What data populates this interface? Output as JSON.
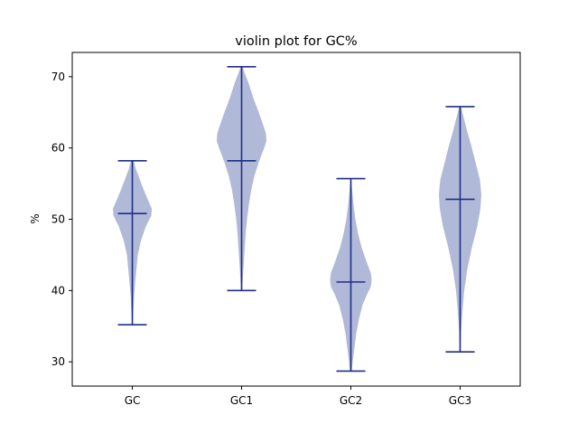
{
  "chart_data": {
    "type": "violin",
    "title": "violin plot for GC%",
    "xlabel": "",
    "ylabel": "%",
    "categories": [
      "GC",
      "GC1",
      "GC2",
      "GC3"
    ],
    "ylim": [
      26.6,
      73.4
    ],
    "yticks": [
      30,
      40,
      50,
      60,
      70
    ],
    "grid": false,
    "colors": {
      "body": "#b0b9d8",
      "lines": "#1f2f86",
      "axes": "#000000"
    },
    "violins": [
      {
        "category": "GC",
        "min": 35.2,
        "max": 58.2,
        "mean": 50.8,
        "profile": [
          [
            35.2,
            0.5
          ],
          [
            37,
            1
          ],
          [
            39,
            1.8
          ],
          [
            41,
            3
          ],
          [
            43,
            4.5
          ],
          [
            45,
            6
          ],
          [
            47,
            9.5
          ],
          [
            49,
            15
          ],
          [
            50.5,
            21
          ],
          [
            51.5,
            21.5
          ],
          [
            52.5,
            18
          ],
          [
            54,
            13
          ],
          [
            55.5,
            8.5
          ],
          [
            57,
            4
          ],
          [
            58.2,
            1.5
          ]
        ]
      },
      {
        "category": "GC1",
        "min": 40.0,
        "max": 71.4,
        "mean": 58.2,
        "profile": [
          [
            40,
            0.5
          ],
          [
            42,
            1.5
          ],
          [
            44,
            2.5
          ],
          [
            46,
            3.5
          ],
          [
            48,
            4.5
          ],
          [
            50,
            6
          ],
          [
            52,
            8
          ],
          [
            54,
            10.5
          ],
          [
            56,
            14
          ],
          [
            58,
            19
          ],
          [
            60,
            25
          ],
          [
            61,
            27.5
          ],
          [
            62,
            27
          ],
          [
            63,
            24.5
          ],
          [
            65,
            19
          ],
          [
            67,
            13
          ],
          [
            69,
            8
          ],
          [
            70.5,
            3.5
          ],
          [
            71.4,
            1
          ]
        ]
      },
      {
        "category": "GC2",
        "min": 28.7,
        "max": 55.7,
        "mean": 41.2,
        "profile": [
          [
            28.7,
            1
          ],
          [
            30,
            2
          ],
          [
            32,
            4
          ],
          [
            34,
            6
          ],
          [
            36,
            9
          ],
          [
            38,
            13
          ],
          [
            39.5,
            18
          ],
          [
            40.5,
            22
          ],
          [
            41.5,
            23
          ],
          [
            42.5,
            22
          ],
          [
            44,
            17.5
          ],
          [
            46,
            12
          ],
          [
            48,
            8
          ],
          [
            50,
            5
          ],
          [
            52,
            3
          ],
          [
            54,
            1.5
          ],
          [
            55.7,
            0.5
          ]
        ]
      },
      {
        "category": "GC3",
        "min": 31.4,
        "max": 65.8,
        "mean": 52.8,
        "profile": [
          [
            31.4,
            0.5
          ],
          [
            34,
            1
          ],
          [
            37,
            2.5
          ],
          [
            40,
            4.5
          ],
          [
            43,
            8
          ],
          [
            46,
            13
          ],
          [
            49,
            19
          ],
          [
            51.5,
            22.5
          ],
          [
            53.5,
            23.5
          ],
          [
            55.5,
            22
          ],
          [
            58,
            17
          ],
          [
            60.5,
            12
          ],
          [
            62.5,
            7.5
          ],
          [
            64.5,
            3.5
          ],
          [
            65.8,
            1
          ]
        ]
      }
    ]
  }
}
